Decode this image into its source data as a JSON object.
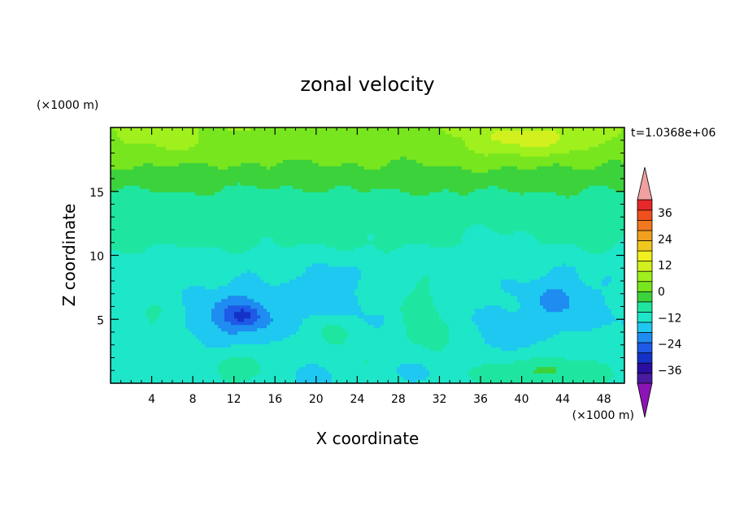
{
  "chart_data": {
    "type": "heatmap",
    "title": "zonal velocity",
    "xlabel": "X coordinate",
    "ylabel": "Z coordinate",
    "x_units": "(×1000 m)",
    "y_units": "(×1000 m)",
    "time_label": "t=1.0368e+06",
    "xlim": [
      0,
      50
    ],
    "ylim": [
      0,
      20
    ],
    "x_ticks": [
      4,
      8,
      12,
      16,
      20,
      24,
      28,
      32,
      36,
      40,
      44,
      48
    ],
    "y_ticks": [
      5,
      10,
      15
    ],
    "colorbar": {
      "min": -42,
      "max": 42,
      "step": 6,
      "tick_values": [
        36,
        24,
        12,
        0,
        -12,
        -24,
        -36
      ],
      "tick_labels": [
        "36",
        "24",
        "12",
        "0",
        "−12",
        "−24",
        "−36"
      ],
      "colors": [
        "#4a1aa0",
        "#2a0ea0",
        "#1432c8",
        "#1e5ae6",
        "#1e8cf0",
        "#1ec8f0",
        "#1ee6c8",
        "#1ee6a0",
        "#3cd23c",
        "#78e61e",
        "#a0f01e",
        "#d2f01e",
        "#f0f01e",
        "#f0c81e",
        "#f0a01e",
        "#f0781e",
        "#f0501e",
        "#e62828"
      ],
      "under_color": "#8c14b4",
      "over_color": "#f0a0a0"
    },
    "field": {
      "background": 6,
      "base_profile": [
        {
          "z": 0,
          "u": -2
        },
        {
          "z": 5,
          "u": -6
        },
        {
          "z": 9,
          "u": -4
        },
        {
          "z": 11,
          "u": 1
        },
        {
          "z": 14,
          "u": 3
        },
        {
          "z": 16,
          "u": 9
        },
        {
          "z": 18,
          "u": 14
        },
        {
          "z": 20,
          "u": 17
        }
      ],
      "features": [
        {
          "x": 42,
          "z": 19.2,
          "rx": 6,
          "rz": 1.2,
          "amp": 8
        },
        {
          "x": 38,
          "z": 18.5,
          "rx": 6,
          "rz": 1.5,
          "amp": 4
        },
        {
          "x": 5,
          "z": 19,
          "rx": 6,
          "rz": 1.5,
          "amp": 4
        },
        {
          "x": 12.5,
          "z": 5.3,
          "rx": 3.5,
          "rz": 2,
          "amp": -12
        },
        {
          "x": 13,
          "z": 5.3,
          "rx": 1.5,
          "rz": 0.8,
          "amp": -8
        },
        {
          "x": 21,
          "z": 7,
          "rx": 2.5,
          "rz": 2.5,
          "amp": -6
        },
        {
          "x": 30,
          "z": 5.5,
          "rx": 2.5,
          "rz": 3,
          "amp": 8
        },
        {
          "x": 32,
          "z": 3.5,
          "rx": 2,
          "rz": 2,
          "amp": 4
        },
        {
          "x": 21.5,
          "z": 4,
          "rx": 1.8,
          "rz": 1.5,
          "amp": 9
        },
        {
          "x": 43.5,
          "z": 6.5,
          "rx": 3,
          "rz": 2,
          "amp": -8
        },
        {
          "x": 38.5,
          "z": 3.5,
          "rx": 2,
          "rz": 1.5,
          "amp": -5
        },
        {
          "x": 4,
          "z": 5,
          "rx": 2.5,
          "rz": 2,
          "amp": 6
        },
        {
          "x": 30,
          "z": 1,
          "rx": 3,
          "rz": 1.2,
          "amp": -6
        },
        {
          "x": 20,
          "z": 0.5,
          "rx": 2,
          "rz": 1,
          "amp": -8
        },
        {
          "x": 42,
          "z": 1,
          "rx": 7,
          "rz": 1,
          "amp": 9
        },
        {
          "x": 13,
          "z": 1.5,
          "rx": 3,
          "rz": 1.2,
          "amp": 6
        },
        {
          "x": 25,
          "z": 1.8,
          "rx": 2,
          "rz": 1,
          "amp": 5
        },
        {
          "x": 1.5,
          "z": 12,
          "rx": 3,
          "rz": 1,
          "amp": 4
        },
        {
          "x": 38,
          "z": 11,
          "rx": 6,
          "rz": 1.5,
          "amp": -2
        },
        {
          "x": 16,
          "z": 14.5,
          "rx": 5,
          "rz": 1,
          "amp": -2
        }
      ]
    }
  }
}
